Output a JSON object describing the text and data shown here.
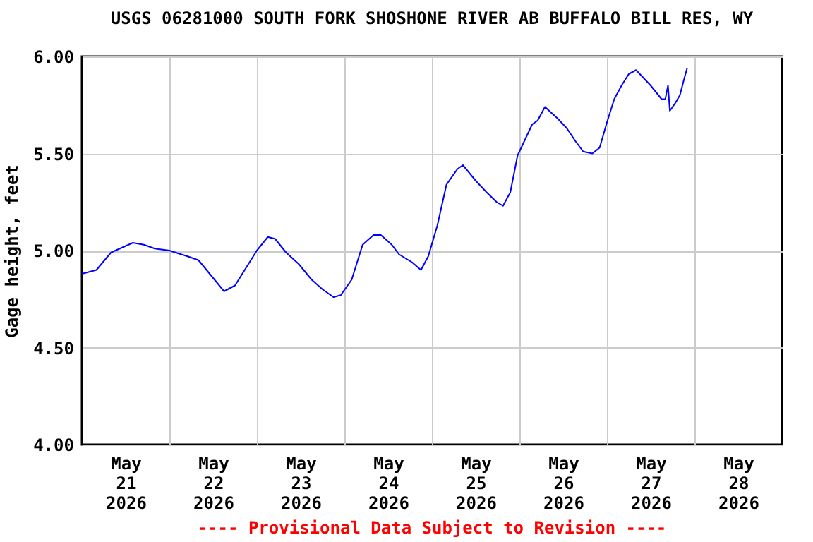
{
  "chart_data": {
    "type": "line",
    "title": "USGS 06281000 SOUTH FORK SHOSHONE RIVER AB BUFFALO BILL RES, WY",
    "ylabel": "Gage height, feet",
    "annotations": [
      "---- Provisional Data Subject to Revision ----"
    ],
    "xlim": [
      "2026-05-21T00:00",
      "2026-05-29T00:00"
    ],
    "xticks": [
      {
        "value": "2026-05-21T12:00",
        "label": "May\n21\n2026"
      },
      {
        "value": "2026-05-22T12:00",
        "label": "May\n22\n2026"
      },
      {
        "value": "2026-05-23T12:00",
        "label": "May\n23\n2026"
      },
      {
        "value": "2026-05-24T12:00",
        "label": "May\n24\n2026"
      },
      {
        "value": "2026-05-25T12:00",
        "label": "May\n25\n2026"
      },
      {
        "value": "2026-05-26T12:00",
        "label": "May\n26\n2026"
      },
      {
        "value": "2026-05-27T12:00",
        "label": "May\n27\n2026"
      },
      {
        "value": "2026-05-28T12:00",
        "label": "May\n28\n2026"
      },
      {
        "value": "2026-05-22T00:00",
        "label": null
      },
      {
        "value": "2026-05-23T00:00",
        "label": null
      },
      {
        "value": "2026-05-24T00:00",
        "label": null
      },
      {
        "value": "2026-05-25T00:00",
        "label": null
      },
      {
        "value": "2026-05-26T00:00",
        "label": null
      },
      {
        "value": "2026-05-27T00:00",
        "label": null
      },
      {
        "value": "2026-05-28T00:00",
        "label": null
      }
    ],
    "ylim": [
      4,
      6
    ],
    "yticks": [
      {
        "value": 4,
        "label": "4.00"
      },
      {
        "value": 4.5,
        "label": "4.50"
      },
      {
        "value": 5,
        "label": "5.00"
      },
      {
        "value": 5.5,
        "label": "5.50"
      },
      {
        "value": 6,
        "label": "6.00"
      }
    ],
    "grid": true,
    "series": [
      {
        "color": "#0000ff",
        "x": [
          "2026-05-21T00:00",
          "2026-05-21T04:00",
          "2026-05-21T08:00",
          "2026-05-21T14:00",
          "2026-05-21T17:00",
          "2026-05-21T20:00",
          "2026-05-22T00:00",
          "2026-05-22T05:00",
          "2026-05-22T08:00",
          "2026-05-22T11:30",
          "2026-05-22T15:00",
          "2026-05-22T18:00",
          "2026-05-22T21:00",
          "2026-05-23T00:00",
          "2026-05-23T03:00",
          "2026-05-23T05:00",
          "2026-05-23T08:00",
          "2026-05-23T11:30",
          "2026-05-23T15:00",
          "2026-05-23T18:00",
          "2026-05-23T21:00",
          "2026-05-23T23:00",
          "2026-05-24T02:00",
          "2026-05-24T05:00",
          "2026-05-24T08:00",
          "2026-05-24T10:00",
          "2026-05-24T13:00",
          "2026-05-24T15:00",
          "2026-05-24T18:30",
          "2026-05-24T21:00",
          "2026-05-24T23:00",
          "2026-05-25T01:30",
          "2026-05-25T04:00",
          "2026-05-25T07:00",
          "2026-05-25T08:30",
          "2026-05-25T12:00",
          "2026-05-25T15:00",
          "2026-05-25T17:45",
          "2026-05-25T19:30",
          "2026-05-25T21:30",
          "2026-05-25T23:30",
          "2026-05-26T01:30",
          "2026-05-26T03:30",
          "2026-05-26T05:00",
          "2026-05-26T07:00",
          "2026-05-26T10:30",
          "2026-05-26T13:00",
          "2026-05-26T15:30",
          "2026-05-26T17:30",
          "2026-05-26T20:00",
          "2026-05-26T22:00",
          "2026-05-27T00:00",
          "2026-05-27T02:00",
          "2026-05-27T04:00",
          "2026-05-27T06:00",
          "2026-05-27T08:00",
          "2026-05-27T09:00",
          "2026-05-27T12:00",
          "2026-05-27T15:00",
          "2026-05-27T16:00",
          "2026-05-27T16:45",
          "2026-05-27T17:15",
          "2026-05-27T18:45",
          "2026-05-27T20:00",
          "2026-05-27T21:15",
          "2026-05-27T22:00"
        ],
        "values": [
          4.88,
          4.9,
          4.99,
          5.04,
          5.03,
          5.01,
          5.0,
          4.97,
          4.95,
          4.87,
          4.79,
          4.82,
          4.91,
          5.0,
          5.07,
          5.06,
          4.99,
          4.93,
          4.85,
          4.8,
          4.76,
          4.77,
          4.85,
          5.03,
          5.08,
          5.08,
          5.03,
          4.98,
          4.94,
          4.9,
          4.97,
          5.13,
          5.34,
          5.42,
          5.44,
          5.36,
          5.3,
          5.25,
          5.23,
          5.3,
          5.49,
          5.57,
          5.65,
          5.67,
          5.74,
          5.68,
          5.63,
          5.56,
          5.51,
          5.5,
          5.53,
          5.66,
          5.78,
          5.85,
          5.91,
          5.93,
          5.91,
          5.85,
          5.78,
          5.78,
          5.85,
          5.72,
          5.76,
          5.8,
          5.89,
          5.94
        ]
      }
    ]
  }
}
